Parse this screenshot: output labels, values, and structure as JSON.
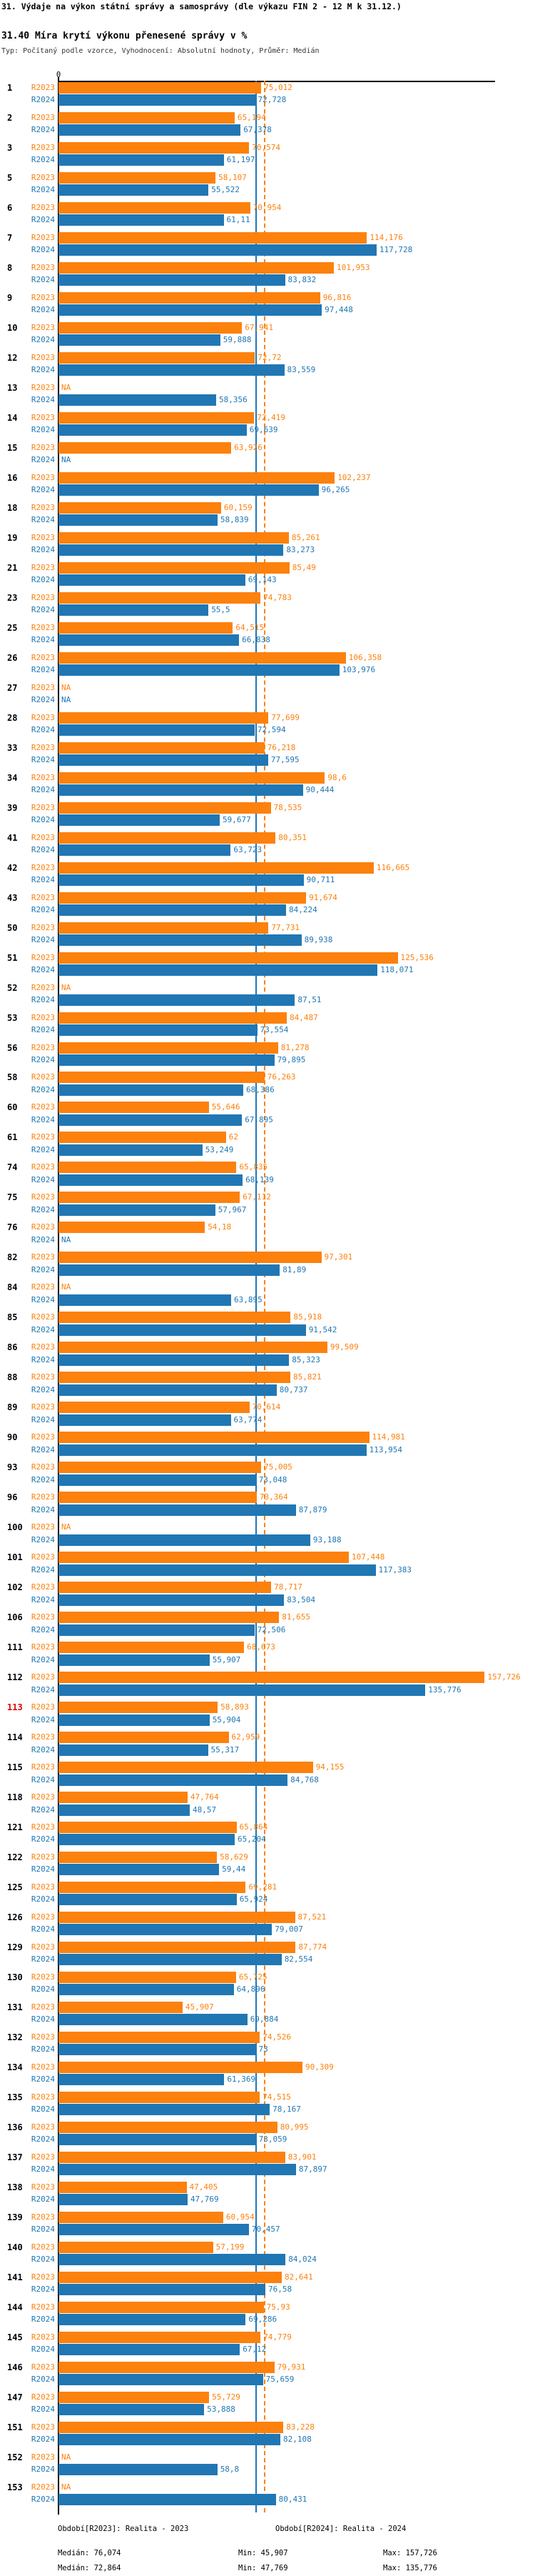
{
  "page": {
    "title": "31. Výdaje na výkon státní správy a samosprávy (dle výkazu FIN 2 - 12 M k 31.12.)",
    "subtitle": "31.40 Míra krytí výkonu přenesené správy v %",
    "meta": "Typ: Počítaný podle vzorce, Vyhodnocení: Absolutní hodnoty, Průměr: Medián"
  },
  "colors": {
    "r2023": "#fd810d",
    "r2024": "#2077b4",
    "highlight": "#dd0000",
    "axis": "#000000"
  },
  "legend": {
    "r2023": "Období[R2023]: Realita - 2023",
    "r2024": "Období[R2024]: Realita - 2024"
  },
  "stats": {
    "r2023": {
      "median_label": "Medián: 76,074",
      "min_label": "Min: 45,907",
      "max_label": "Max: 157,726"
    },
    "r2024": {
      "median_label": "Medián: 72,864",
      "min_label": "Min: 47,769",
      "max_label": "Max: 135,776"
    }
  },
  "chart_data": {
    "type": "bar",
    "orientation": "horizontal",
    "title": "31.40 Míra krytí výkonu přenesené správy v %",
    "xlabel": "",
    "ylabel": "",
    "xlim": [
      0,
      160
    ],
    "grid": false,
    "legend_position": "bottom",
    "x_axis": {
      "zero_label": "0",
      "min": 0,
      "max": 160
    },
    "na_label": "NA",
    "highlight_category": "113",
    "median_lines": {
      "r2023": 76.074,
      "r2024": 72.864
    },
    "stats": {
      "r2023": {
        "median": 76.074,
        "min": 45.907,
        "max": 157.726
      },
      "r2024": {
        "median": 72.864,
        "min": 47.769,
        "max": 135.776
      }
    },
    "categories": [
      "1",
      "2",
      "3",
      "5",
      "6",
      "7",
      "8",
      "9",
      "10",
      "12",
      "13",
      "14",
      "15",
      "16",
      "18",
      "19",
      "21",
      "23",
      "25",
      "26",
      "27",
      "28",
      "33",
      "34",
      "39",
      "41",
      "42",
      "43",
      "50",
      "51",
      "52",
      "53",
      "56",
      "58",
      "60",
      "61",
      "74",
      "75",
      "76",
      "82",
      "84",
      "85",
      "86",
      "88",
      "89",
      "90",
      "93",
      "96",
      "100",
      "101",
      "102",
      "106",
      "111",
      "112",
      "113",
      "114",
      "115",
      "118",
      "121",
      "122",
      "125",
      "126",
      "129",
      "130",
      "131",
      "132",
      "134",
      "135",
      "136",
      "137",
      "138",
      "139",
      "140",
      "141",
      "144",
      "145",
      "146",
      "147",
      "151",
      "152",
      "153"
    ],
    "series": [
      {
        "name": "R2023",
        "values": [
          75.012,
          65.194,
          70.574,
          58.107,
          70.954,
          114.176,
          101.953,
          96.816,
          67.941,
          72.72,
          null,
          72.419,
          63.926,
          102.237,
          60.159,
          85.261,
          85.49,
          74.783,
          64.515,
          106.358,
          null,
          77.699,
          76.218,
          98.6,
          78.535,
          80.351,
          116.665,
          91.674,
          77.731,
          125.536,
          null,
          84.487,
          81.278,
          76.263,
          55.646,
          62,
          65.835,
          67.112,
          54.18,
          97.301,
          null,
          85.918,
          99.509,
          85.821,
          70.614,
          114.981,
          75.005,
          73.364,
          null,
          107.448,
          78.717,
          81.655,
          68.673,
          157.726,
          58.893,
          62.959,
          94.155,
          47.764,
          65.864,
          58.629,
          69.281,
          87.521,
          87.774,
          65.725,
          45.907,
          74.526,
          90.309,
          74.515,
          80.995,
          83.901,
          47.405,
          60.954,
          57.199,
          82.641,
          75.93,
          74.779,
          79.931,
          55.729,
          83.228,
          null,
          null
        ]
      },
      {
        "name": "R2024",
        "values": [
          72.728,
          67.378,
          61.197,
          55.522,
          61.11,
          117.728,
          83.832,
          97.448,
          59.888,
          83.559,
          58.356,
          69.639,
          null,
          96.265,
          58.839,
          83.273,
          69.143,
          55.5,
          66.838,
          103.976,
          null,
          72.594,
          77.595,
          90.444,
          59.677,
          63.723,
          90.711,
          84.224,
          89.938,
          118.071,
          87.51,
          73.554,
          79.895,
          68.386,
          67.895,
          53.249,
          68.139,
          57.967,
          null,
          81.89,
          63.895,
          91.542,
          85.323,
          80.737,
          63.774,
          113.954,
          73.048,
          87.879,
          93.188,
          117.383,
          83.504,
          72.506,
          55.907,
          135.776,
          55.904,
          55.317,
          84.768,
          48.57,
          65.204,
          59.44,
          65.924,
          79.007,
          82.554,
          64.896,
          69.884,
          73,
          61.369,
          78.167,
          73.059,
          87.897,
          47.769,
          70.457,
          84.024,
          76.58,
          69.286,
          67.12,
          75.659,
          53.888,
          82.108,
          58.8,
          80.431
        ]
      }
    ]
  }
}
